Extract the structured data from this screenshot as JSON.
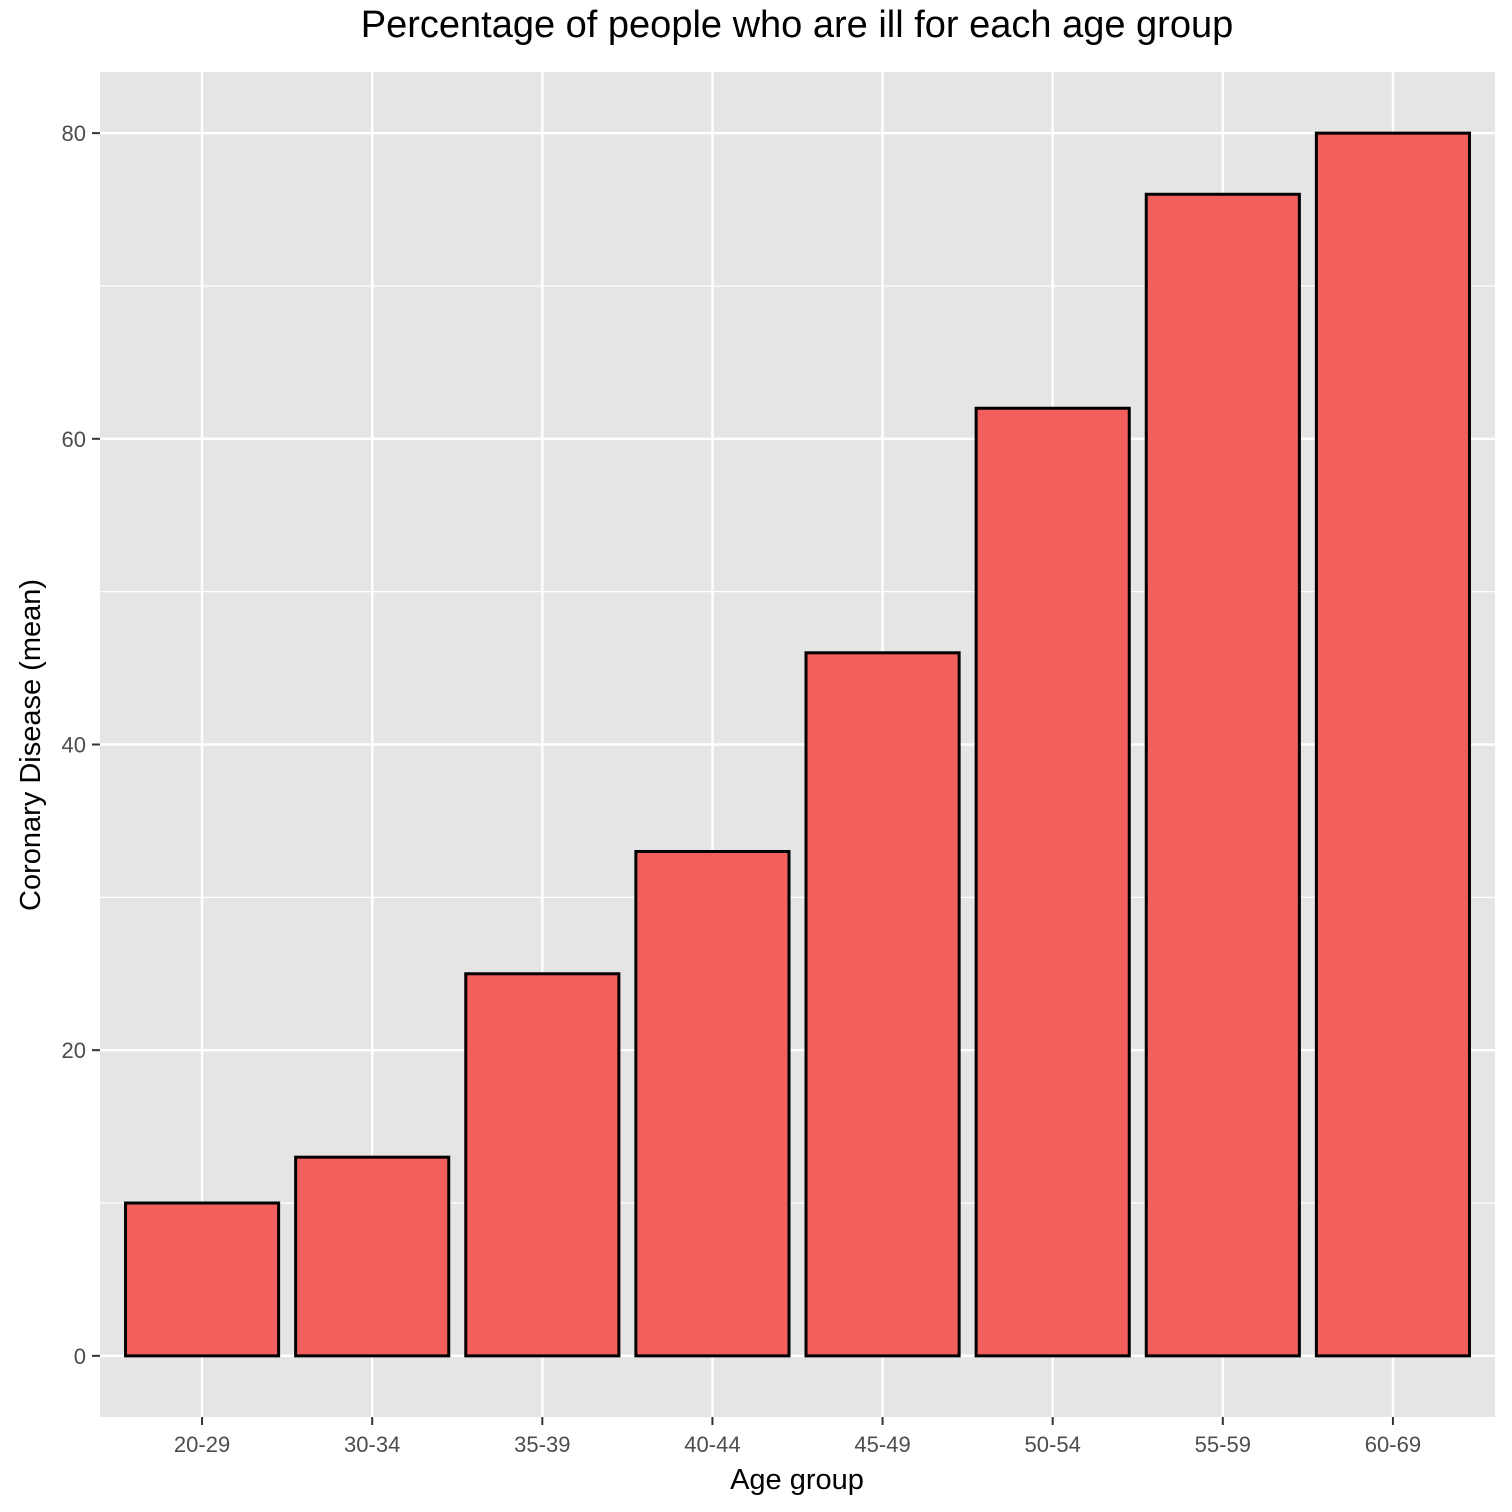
{
  "chart_data": {
    "type": "bar",
    "title": "Percentage of people who are ill for each age group",
    "xlabel": "Age group",
    "ylabel": "Coronary Disease (mean)",
    "categories": [
      "20-29",
      "30-34",
      "35-39",
      "40-44",
      "45-49",
      "50-54",
      "55-59",
      "60-69"
    ],
    "values": [
      10,
      13,
      25,
      33,
      46,
      62,
      76,
      80
    ],
    "ylim": [
      -4,
      84
    ],
    "yticks": [
      0,
      20,
      40,
      60,
      80
    ],
    "yticks_minor": [
      10,
      30,
      50,
      70
    ],
    "grid": true,
    "colors": {
      "bar_fill": "#f35f5c",
      "bar_stroke": "#000000",
      "panel_bg": "#e5e5e5",
      "grid": "#ffffff"
    }
  }
}
